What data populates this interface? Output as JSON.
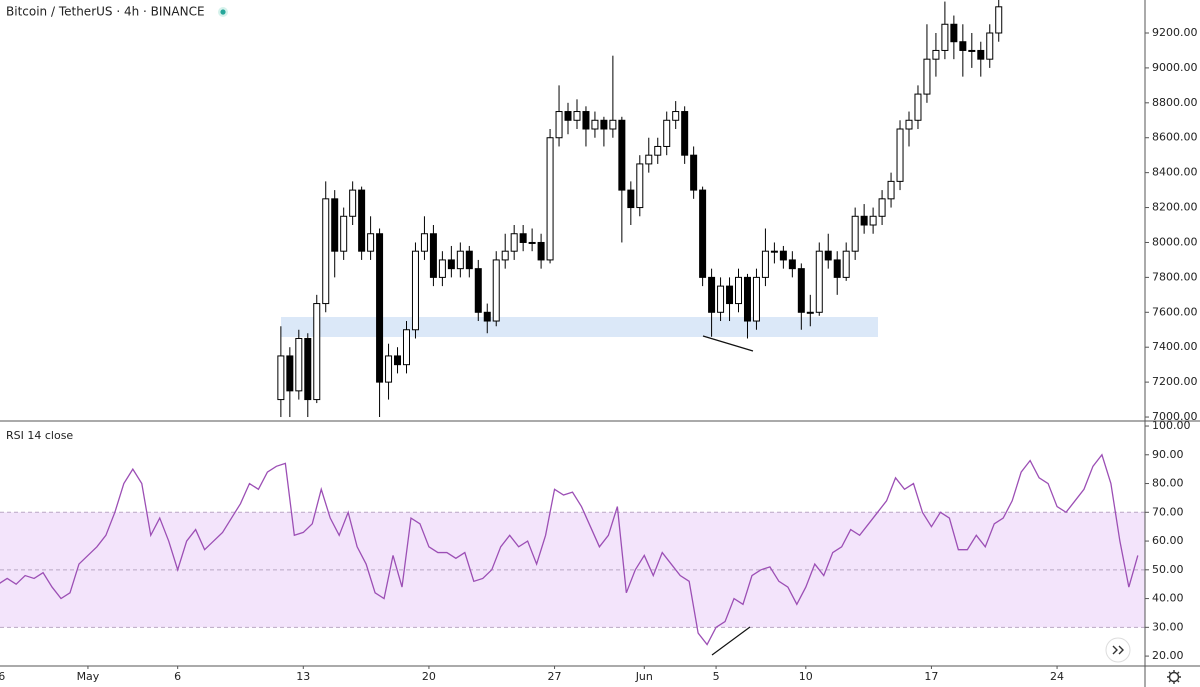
{
  "chart_data": [
    {
      "type": "candlestick",
      "title": "Bitcoin / TetherUS · 4h · BINANCE",
      "up_color": "#ffffff",
      "down_color": "#000000",
      "border_color": "#000000",
      "xlim": [
        -4.9,
        58.9
      ],
      "ylim": [
        6983,
        9389
      ],
      "yticks": [
        {
          "value": 7000,
          "label": "7000.00"
        },
        {
          "value": 7200,
          "label": "7200.00"
        },
        {
          "value": 7400,
          "label": "7400.00"
        },
        {
          "value": 7600,
          "label": "7600.00"
        },
        {
          "value": 7800,
          "label": "7800.00"
        },
        {
          "value": 8000,
          "label": "8000.00"
        },
        {
          "value": 8200,
          "label": "8200.00"
        },
        {
          "value": 8400,
          "label": "8400.00"
        },
        {
          "value": 8600,
          "label": "8600.00"
        },
        {
          "value": 8800,
          "label": "8800.00"
        },
        {
          "value": 9000,
          "label": "9000.00"
        },
        {
          "value": 9200,
          "label": "9200.00"
        }
      ],
      "x": [
        10.75,
        11.25,
        11.75,
        12.25,
        12.75,
        13.25,
        13.75,
        14.25,
        14.75,
        15.25,
        15.75,
        16.25,
        16.75,
        17.25,
        17.75,
        18.25,
        18.75,
        19.25,
        19.75,
        20.25,
        20.75,
        21.25,
        21.75,
        22.25,
        22.75,
        23.25,
        23.75,
        24.25,
        24.75,
        25.25,
        25.75,
        26.25,
        26.75,
        27.25,
        27.75,
        28.25,
        28.75,
        29.25,
        29.75,
        30.25,
        30.75,
        31.25,
        31.75,
        32.25,
        32.75,
        33.25,
        33.75,
        34.25,
        34.75,
        35.25,
        35.75,
        36.25,
        36.75,
        37.25,
        37.75,
        38.25,
        38.75,
        39.25,
        39.75,
        40.25,
        40.75,
        41.25,
        41.75,
        42.25,
        42.75,
        43.25,
        43.75,
        44.25,
        44.75,
        45.25,
        45.75,
        46.25,
        46.75,
        47.25,
        47.75,
        48.25,
        48.75,
        49.25,
        49.75,
        50.25,
        50.75
      ],
      "ohlc": [
        [
          7100,
          7520,
          7000,
          7350
        ],
        [
          7350,
          7400,
          7000,
          7150
        ],
        [
          7150,
          7500,
          7100,
          7450
        ],
        [
          7450,
          7480,
          7000,
          7100
        ],
        [
          7100,
          7700,
          7080,
          7650
        ],
        [
          7650,
          8350,
          7600,
          8250
        ],
        [
          8250,
          8300,
          7800,
          7950
        ],
        [
          7950,
          8200,
          7900,
          8150
        ],
        [
          8150,
          8350,
          8100,
          8300
        ],
        [
          8300,
          8320,
          7900,
          7950
        ],
        [
          7950,
          8150,
          7900,
          8050
        ],
        [
          8050,
          8080,
          7000,
          7200
        ],
        [
          7200,
          7420,
          7100,
          7350
        ],
        [
          7350,
          7400,
          7250,
          7300
        ],
        [
          7300,
          7550,
          7250,
          7500
        ],
        [
          7500,
          8000,
          7450,
          7950
        ],
        [
          7950,
          8150,
          7900,
          8050
        ],
        [
          8050,
          8100,
          7750,
          7800
        ],
        [
          7800,
          7950,
          7750,
          7900
        ],
        [
          7900,
          7980,
          7800,
          7850
        ],
        [
          7850,
          8000,
          7800,
          7950
        ],
        [
          7950,
          7980,
          7800,
          7850
        ],
        [
          7850,
          7900,
          7550,
          7600
        ],
        [
          7600,
          7650,
          7480,
          7550
        ],
        [
          7550,
          7950,
          7520,
          7900
        ],
        [
          7900,
          8050,
          7850,
          7950
        ],
        [
          7950,
          8100,
          7900,
          8050
        ],
        [
          8050,
          8100,
          7950,
          8000
        ],
        [
          8000,
          8080,
          7950,
          8000
        ],
        [
          8000,
          8050,
          7850,
          7900
        ],
        [
          7900,
          8650,
          7880,
          8600
        ],
        [
          8600,
          8900,
          8550,
          8750
        ],
        [
          8750,
          8800,
          8620,
          8700
        ],
        [
          8700,
          8820,
          8650,
          8750
        ],
        [
          8750,
          8780,
          8550,
          8650
        ],
        [
          8650,
          8750,
          8600,
          8700
        ],
        [
          8700,
          8720,
          8550,
          8650
        ],
        [
          8650,
          9070,
          8600,
          8700
        ],
        [
          8700,
          8720,
          8000,
          8300
        ],
        [
          8300,
          8350,
          8100,
          8200
        ],
        [
          8200,
          8500,
          8150,
          8450
        ],
        [
          8450,
          8600,
          8400,
          8500
        ],
        [
          8500,
          8600,
          8450,
          8550
        ],
        [
          8550,
          8750,
          8500,
          8700
        ],
        [
          8700,
          8810,
          8650,
          8750
        ],
        [
          8750,
          8780,
          8450,
          8500
        ],
        [
          8500,
          8550,
          8250,
          8300
        ],
        [
          8300,
          8320,
          7750,
          7800
        ],
        [
          7800,
          7850,
          7460,
          7600
        ],
        [
          7600,
          7800,
          7550,
          7750
        ],
        [
          7750,
          7800,
          7550,
          7650
        ],
        [
          7650,
          7850,
          7600,
          7800
        ],
        [
          7800,
          7820,
          7450,
          7550
        ],
        [
          7550,
          7850,
          7500,
          7800
        ],
        [
          7800,
          8080,
          7750,
          7950
        ],
        [
          7950,
          8000,
          7880,
          7950
        ],
        [
          7950,
          7980,
          7850,
          7900
        ],
        [
          7900,
          7950,
          7800,
          7850
        ],
        [
          7850,
          7880,
          7500,
          7600
        ],
        [
          7600,
          7700,
          7520,
          7600
        ],
        [
          7600,
          8000,
          7580,
          7950
        ],
        [
          7950,
          8050,
          7850,
          7900
        ],
        [
          7900,
          7950,
          7700,
          7800
        ],
        [
          7800,
          8000,
          7780,
          7950
        ],
        [
          7950,
          8200,
          7900,
          8150
        ],
        [
          8150,
          8220,
          8050,
          8100
        ],
        [
          8100,
          8200,
          8050,
          8150
        ],
        [
          8150,
          8300,
          8100,
          8250
        ],
        [
          8250,
          8400,
          8200,
          8350
        ],
        [
          8350,
          8700,
          8300,
          8650
        ],
        [
          8650,
          8750,
          8550,
          8700
        ],
        [
          8700,
          8900,
          8650,
          8850
        ],
        [
          8850,
          9250,
          8800,
          9050
        ],
        [
          9050,
          9200,
          8950,
          9100
        ],
        [
          9100,
          9380,
          9050,
          9250
        ],
        [
          9250,
          9300,
          9050,
          9150
        ],
        [
          9150,
          9250,
          8950,
          9100
        ],
        [
          9100,
          9200,
          9000,
          9100
        ],
        [
          9100,
          9150,
          8950,
          9050
        ],
        [
          9050,
          9250,
          9000,
          9200
        ],
        [
          9200,
          9390,
          9150,
          9350
        ]
      ]
    },
    {
      "type": "line",
      "title": "RSI 14 close",
      "color": "#9c4fb5",
      "band": [
        30,
        70
      ],
      "midline": 50,
      "band_color": "#f3e4fb",
      "xlim": [
        -4.9,
        58.9
      ],
      "ylim": [
        16.9,
        101.4
      ],
      "yticks": [
        {
          "value": 20,
          "label": "20.00"
        },
        {
          "value": 30,
          "label": "30.00"
        },
        {
          "value": 40,
          "label": "40.00"
        },
        {
          "value": 50,
          "label": "50.00"
        },
        {
          "value": 60,
          "label": "60.00"
        },
        {
          "value": 70,
          "label": "70.00"
        },
        {
          "value": 80,
          "label": "80.00"
        },
        {
          "value": 90,
          "label": "90.00"
        },
        {
          "value": 100,
          "label": "100.00"
        }
      ],
      "xticks": [
        {
          "value": -5,
          "label": "26"
        },
        {
          "value": 0,
          "label": "May"
        },
        {
          "value": 5,
          "label": "6"
        },
        {
          "value": 12,
          "label": "13"
        },
        {
          "value": 19,
          "label": "20"
        },
        {
          "value": 26,
          "label": "27"
        },
        {
          "value": 31,
          "label": "Jun"
        },
        {
          "value": 35,
          "label": "5"
        },
        {
          "value": 40,
          "label": "10"
        },
        {
          "value": 47,
          "label": "17"
        },
        {
          "value": 54,
          "label": "24"
        }
      ],
      "x": [
        -5,
        -4.5,
        -4,
        -3.5,
        -3,
        -2.5,
        -2,
        -1.5,
        -1,
        -0.5,
        0,
        0.5,
        1,
        1.5,
        2,
        2.5,
        3,
        3.5,
        4,
        4.5,
        5,
        5.5,
        6,
        6.5,
        7,
        7.5,
        8,
        8.5,
        9,
        9.5,
        10,
        10.5,
        11,
        11.5,
        12,
        12.5,
        13,
        13.5,
        14,
        14.5,
        15,
        15.5,
        16,
        16.5,
        17,
        17.5,
        18,
        18.5,
        19,
        19.5,
        20,
        20.5,
        21,
        21.5,
        22,
        22.5,
        23,
        23.5,
        24,
        24.5,
        25,
        25.5,
        26,
        26.5,
        27,
        27.5,
        28,
        28.5,
        29,
        29.5,
        30,
        30.5,
        31,
        31.5,
        32,
        32.5,
        33,
        33.5,
        34,
        34.5,
        35,
        35.5,
        36,
        36.5,
        37,
        37.5,
        38,
        38.5,
        39,
        39.5,
        40,
        40.5,
        41,
        41.5,
        42,
        42.5,
        43,
        43.5,
        44,
        44.5,
        45,
        45.5,
        46,
        46.5,
        47,
        47.5,
        48,
        48.5,
        49,
        49.5,
        50,
        50.5,
        51,
        51.5,
        52,
        52.5,
        53,
        53.5,
        54,
        54.5,
        55,
        55.5,
        56,
        56.5,
        57,
        57.5,
        58,
        58.5
      ],
      "values": [
        45,
        47,
        45,
        48,
        47,
        49,
        44,
        40,
        42,
        52,
        55,
        58,
        62,
        70,
        80,
        85,
        80,
        62,
        68,
        60,
        50,
        60,
        64,
        57,
        60,
        63,
        68,
        73,
        80,
        78,
        84,
        86,
        87,
        62,
        63,
        66,
        78,
        68,
        62,
        70,
        58,
        52,
        42,
        40,
        55,
        44,
        68,
        66,
        58,
        56,
        56,
        54,
        56,
        46,
        47,
        50,
        58,
        62,
        58,
        60,
        52,
        62,
        78,
        76,
        77,
        72,
        65,
        58,
        62,
        72,
        42,
        50,
        55,
        48,
        56,
        52,
        48,
        46,
        28,
        24,
        30,
        32,
        40,
        38,
        48,
        50,
        51,
        46,
        44,
        38,
        44,
        52,
        48,
        56,
        58,
        64,
        62,
        66,
        70,
        74,
        82,
        78,
        80,
        70,
        65,
        70,
        68,
        57,
        57,
        62,
        58,
        66,
        68,
        74,
        84,
        88,
        82,
        80,
        72,
        70,
        74,
        78,
        86,
        90,
        80,
        60,
        44,
        55
      ]
    }
  ]
}
